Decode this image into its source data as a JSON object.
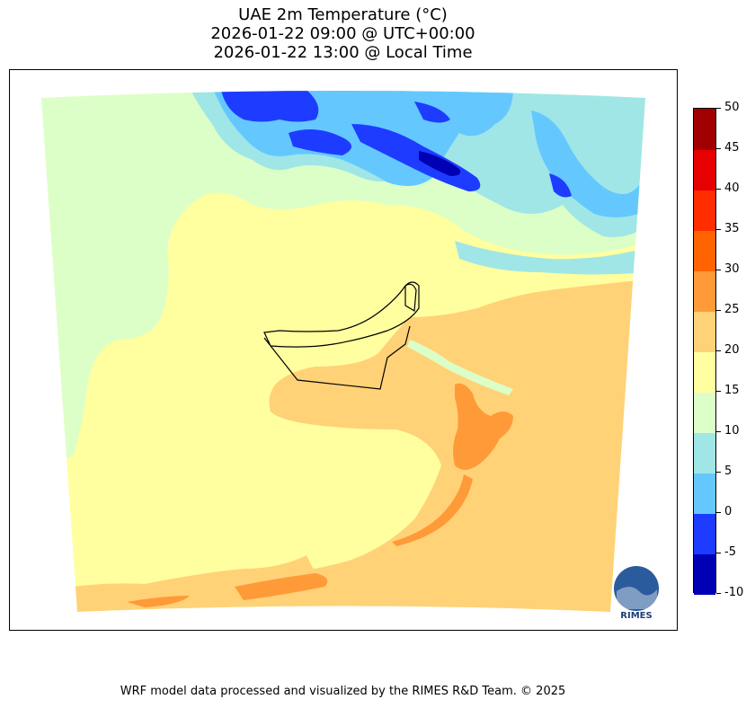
{
  "title": {
    "line1": "UAE 2m Temperature (°C)",
    "line2": "2026-01-22 09:00 @ UTC+00:00",
    "line3": "2026-01-22 13:00 @ Local Time"
  },
  "colorbar": {
    "levels": [
      -10,
      -5,
      0,
      5,
      10,
      15,
      20,
      25,
      30,
      35,
      40,
      45,
      50
    ],
    "tick_labels": [
      "-10",
      "-5",
      "0",
      "5",
      "10",
      "15",
      "20",
      "25",
      "30",
      "35",
      "40",
      "45",
      "50"
    ],
    "colors": [
      "#0000b4",
      "#1e3cff",
      "#64c8ff",
      "#a0e6e6",
      "#dcffc8",
      "#ffffa0",
      "#ffd278",
      "#ff9a38",
      "#ff6400",
      "#ff2d00",
      "#e60000",
      "#a00000"
    ]
  },
  "map": {
    "region": "UAE",
    "variable": "2m Temperature",
    "unit": "°C",
    "logo_text": "RIMES"
  },
  "credit": "WRF model data processed and visualized by the RIMES R&D Team. © 2025"
}
